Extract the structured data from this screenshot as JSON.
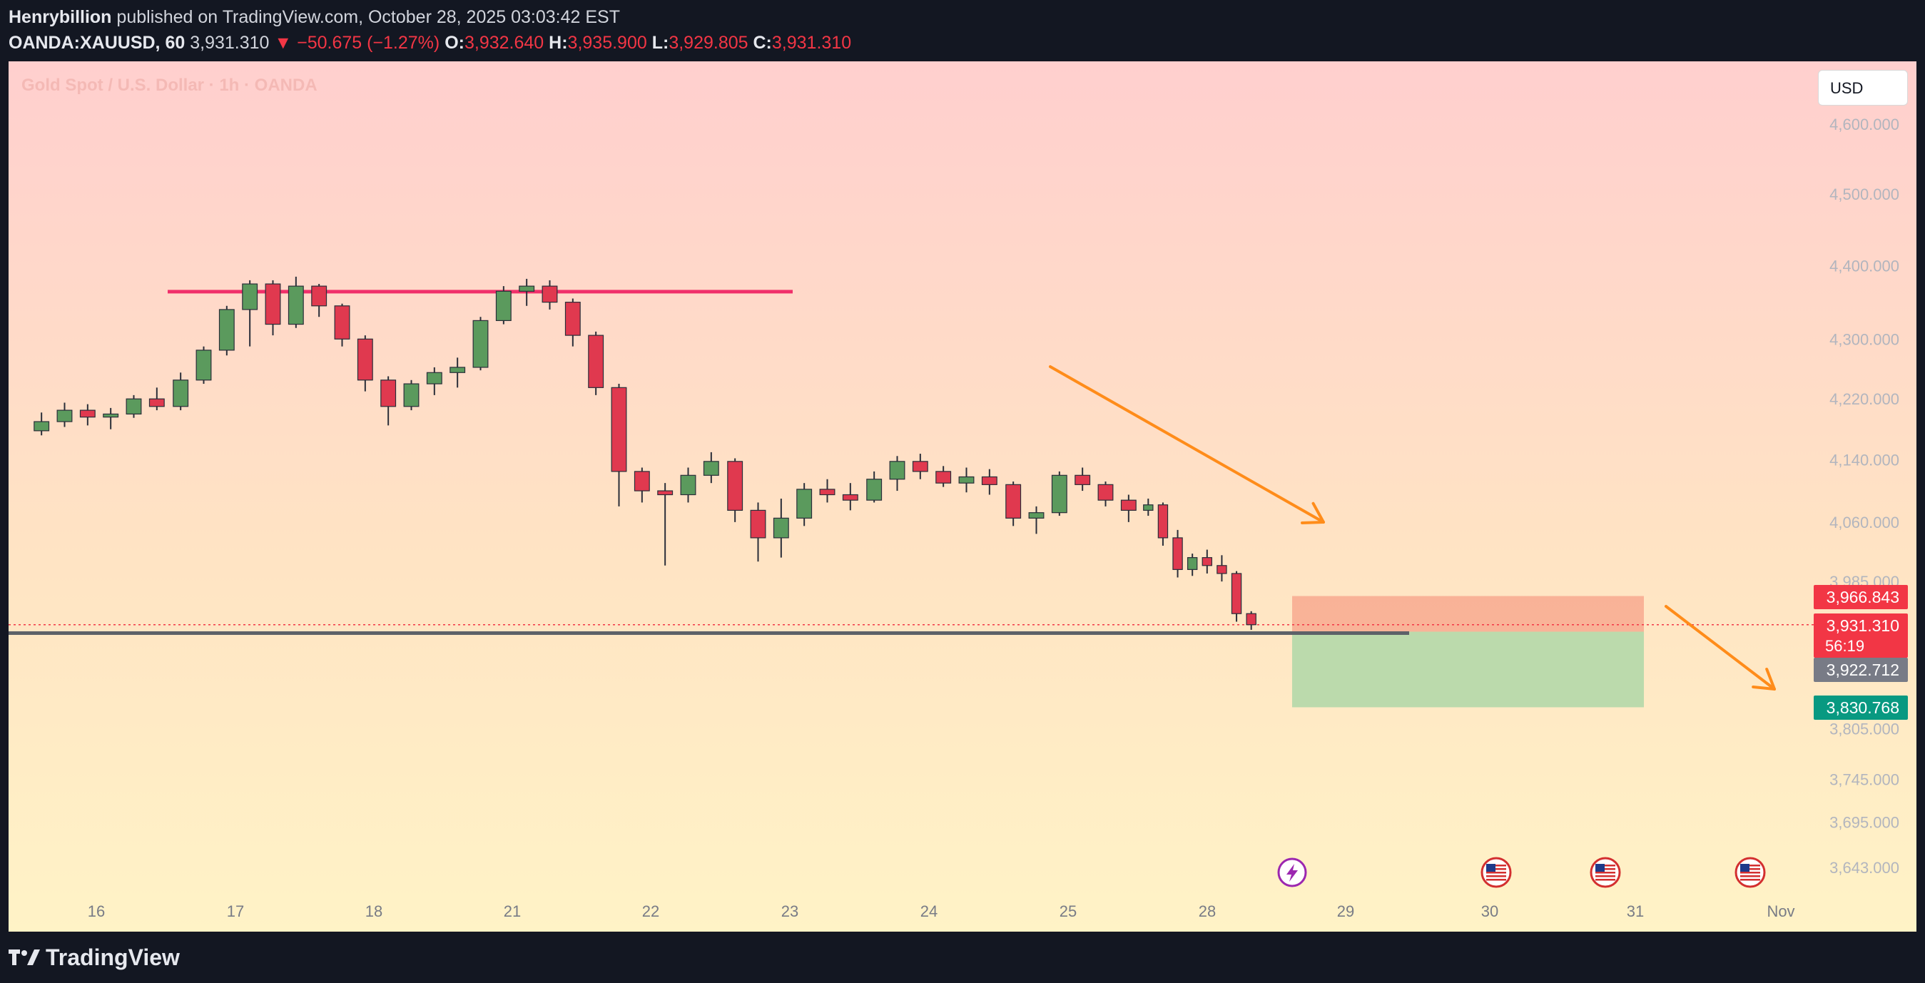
{
  "header": {
    "author": "Henrybillion",
    "published": "published on TradingView.com, October 28, 2025 03:03:42 EST",
    "symbol": "OANDA:XAUUSD, 60",
    "last": "3,931.310",
    "change_arrow": "▼",
    "change": "−50.675 (−1.27%)",
    "open_label": "O:",
    "open": "3,932.640",
    "high_label": "H:",
    "high": "3,935.900",
    "low_label": "L:",
    "low": "3,929.805",
    "close_label": "C:",
    "close": "3,931.310"
  },
  "watermark": "Gold Spot / U.S. Dollar · 1h · OANDA",
  "currency_button": "USD",
  "footer": {
    "brand": "TradingView",
    "logo_icon": "tradingview-logo-icon"
  },
  "colors": {
    "bull": "#5b9a5d",
    "bear": "#e0394f",
    "resistance": "#f0306a",
    "arrow": "#ff8c1a",
    "stop_zone": "#f8a98f",
    "target_zone": "#b4d8a8",
    "support": "#5d6168",
    "price_tag": "#f23645",
    "entry_tag": "#787b86",
    "target_tag": "#089981"
  },
  "chart_data": {
    "type": "candlestick",
    "title": "Gold Spot / U.S. Dollar · 1h · OANDA",
    "y_scale": "log",
    "y_ticks": [
      "4,600.000",
      "4,500.000",
      "4,400.000",
      "4,300.000",
      "4,220.000",
      "4,140.000",
      "4,060.000",
      "3,985.000",
      "3,805.000",
      "3,745.000",
      "3,695.000",
      "3,643.000"
    ],
    "y_tick_values": [
      4600,
      4500,
      4400,
      4300,
      4220,
      4140,
      4060,
      3985,
      3805,
      3745,
      3695,
      3643
    ],
    "x_ticks": [
      "16",
      "17",
      "18",
      "21",
      "22",
      "23",
      "24",
      "25",
      "28",
      "29",
      "30",
      "31",
      "Nov"
    ],
    "series": [
      {
        "date": "16",
        "ohlc": [
          [
            4178,
            4202,
            4172,
            4190
          ],
          [
            4190,
            4215,
            4183,
            4205
          ],
          [
            4205,
            4213,
            4185,
            4196
          ],
          [
            4196,
            4208,
            4180,
            4200
          ],
          [
            4200,
            4225,
            4195,
            4220
          ],
          [
            4220,
            4235,
            4205,
            4210
          ]
        ]
      },
      {
        "date": "17",
        "ohlc": [
          [
            4210,
            4255,
            4205,
            4245
          ],
          [
            4245,
            4290,
            4240,
            4285
          ],
          [
            4285,
            4345,
            4278,
            4340
          ],
          [
            4340,
            4380,
            4290,
            4375
          ],
          [
            4375,
            4380,
            4305,
            4320
          ],
          [
            4320,
            4385,
            4315,
            4372
          ]
        ]
      },
      {
        "date": "18",
        "ohlc": [
          [
            4372,
            4375,
            4330,
            4345
          ],
          [
            4345,
            4348,
            4290,
            4300
          ],
          [
            4300,
            4305,
            4230,
            4245
          ],
          [
            4245,
            4250,
            4185,
            4210
          ],
          [
            4210,
            4245,
            4205,
            4240
          ],
          [
            4240,
            4262,
            4225,
            4255
          ]
        ]
      },
      {
        "date": "21",
        "ohlc": [
          [
            4255,
            4275,
            4235,
            4262
          ],
          [
            4262,
            4330,
            4258,
            4325
          ],
          [
            4325,
            4372,
            4320,
            4365
          ],
          [
            4365,
            4382,
            4345,
            4372
          ],
          [
            4372,
            4380,
            4340,
            4350
          ],
          [
            4350,
            4355,
            4290,
            4305
          ]
        ]
      },
      {
        "date": "22",
        "ohlc": [
          [
            4305,
            4310,
            4225,
            4235
          ],
          [
            4235,
            4240,
            4080,
            4125
          ],
          [
            4125,
            4130,
            4085,
            4100
          ],
          [
            4100,
            4110,
            4005,
            4095
          ],
          [
            4095,
            4130,
            4085,
            4120
          ],
          [
            4120,
            4150,
            4110,
            4138
          ]
        ]
      },
      {
        "date": "23",
        "ohlc": [
          [
            4138,
            4142,
            4060,
            4075
          ],
          [
            4075,
            4085,
            4010,
            4040
          ],
          [
            4040,
            4090,
            4015,
            4065
          ],
          [
            4065,
            4110,
            4055,
            4102
          ],
          [
            4102,
            4115,
            4085,
            4095
          ],
          [
            4095,
            4110,
            4075,
            4088
          ]
        ]
      },
      {
        "date": "24",
        "ohlc": [
          [
            4088,
            4125,
            4085,
            4115
          ],
          [
            4115,
            4145,
            4100,
            4138
          ],
          [
            4138,
            4148,
            4115,
            4125
          ],
          [
            4125,
            4132,
            4105,
            4110
          ],
          [
            4110,
            4130,
            4098,
            4118
          ],
          [
            4118,
            4128,
            4095,
            4108
          ]
        ]
      },
      {
        "date": "25",
        "ohlc": [
          [
            4108,
            4112,
            4055,
            4065
          ],
          [
            4065,
            4080,
            4045,
            4072
          ],
          [
            4072,
            4125,
            4068,
            4120
          ],
          [
            4120,
            4130,
            4100,
            4108
          ],
          [
            4108,
            4112,
            4080,
            4088
          ],
          [
            4088,
            4095,
            4060,
            4075
          ]
        ]
      },
      {
        "date": "28",
        "ohlc": [
          [
            4075,
            4090,
            4068,
            4082
          ],
          [
            4082,
            4085,
            4030,
            4040
          ],
          [
            4040,
            4050,
            3990,
            4000
          ],
          [
            4000,
            4020,
            3992,
            4015
          ],
          [
            4015,
            4025,
            3995,
            4005
          ],
          [
            4005,
            4018,
            3985,
            3995
          ],
          [
            3995,
            3998,
            3935,
            3945
          ],
          [
            3945,
            3948,
            3925,
            3931.31
          ]
        ]
      }
    ],
    "resistance_level": 4380,
    "support_level": 3922.712,
    "position": {
      "stop": "3,966.843",
      "entry": "3,922.712",
      "target": "3,830.768",
      "stop_value": 3966.843,
      "entry_value": 3922.712,
      "target_value": 3830.768
    },
    "current_price": "3,931.310",
    "current_price_value": 3931.31,
    "countdown": "56:19",
    "event_icons": [
      {
        "date": "28",
        "icon": "lightning-icon"
      },
      {
        "date": "30",
        "icon": "us-flag-icon"
      },
      {
        "date": "31",
        "icon": "us-flag-icon"
      },
      {
        "date": "Nov",
        "icon": "us-flag-icon"
      }
    ]
  }
}
